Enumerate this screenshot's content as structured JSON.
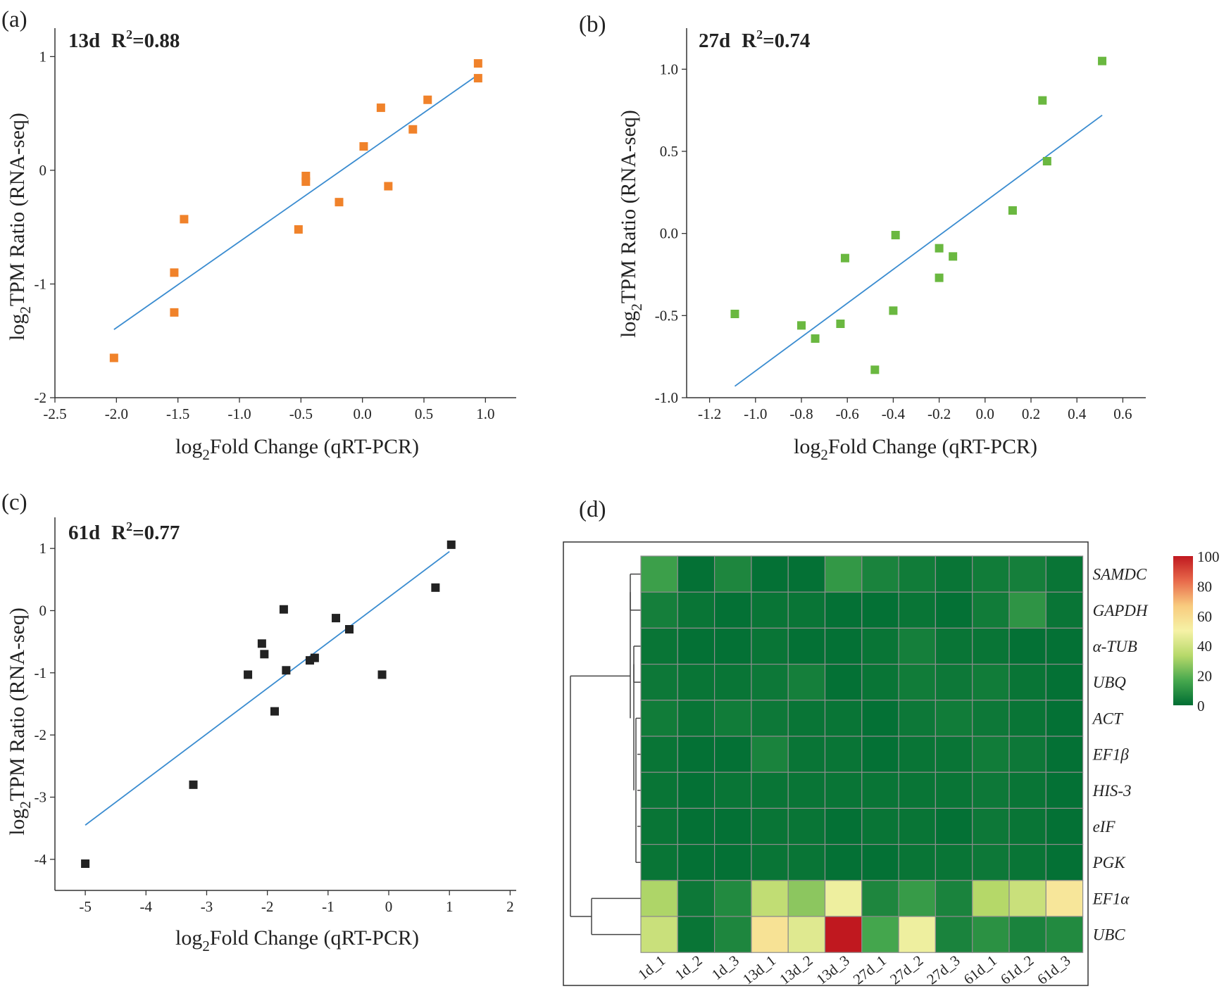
{
  "chart_data": [
    {
      "panel": "(a)",
      "type": "scatter",
      "title": "13d",
      "r2_label": "R",
      "r2_sup": "2",
      "r2_value": "=0.88",
      "xlabel_pre": "log",
      "xlabel_sub": "2",
      "xlabel_post": "Fold Change (qRT-PCR)",
      "ylabel_pre": "log",
      "ylabel_sub": "2",
      "ylabel_post": "TPM Ratio (RNA-seq)",
      "xlim": [
        -2.5,
        1.25
      ],
      "ylim": [
        -2,
        1.25
      ],
      "xticks": [
        -2.5,
        -2.0,
        -1.5,
        -1.0,
        -0.5,
        0.0,
        0.5,
        1.0
      ],
      "xtick_labels": [
        "-2.5",
        "-2.0",
        "-1.5",
        "-1.0",
        "-0.5",
        "0.0",
        "0.5",
        "1.0"
      ],
      "yticks": [
        -2,
        -1,
        0,
        1
      ],
      "ytick_labels": [
        "-2",
        "-1",
        "0",
        "1"
      ],
      "marker_color": "#f0822a",
      "line_color": "#3a8cd0",
      "points": [
        {
          "x": -2.02,
          "y": -1.65
        },
        {
          "x": -1.53,
          "y": -1.25
        },
        {
          "x": -1.53,
          "y": -0.9
        },
        {
          "x": -1.45,
          "y": -0.43
        },
        {
          "x": -0.52,
          "y": -0.52
        },
        {
          "x": -0.46,
          "y": -0.1
        },
        {
          "x": -0.46,
          "y": -0.05
        },
        {
          "x": -0.19,
          "y": -0.28
        },
        {
          "x": 0.01,
          "y": 0.21
        },
        {
          "x": 0.15,
          "y": 0.55
        },
        {
          "x": 0.21,
          "y": -0.14
        },
        {
          "x": 0.41,
          "y": 0.36
        },
        {
          "x": 0.53,
          "y": 0.62
        },
        {
          "x": 0.94,
          "y": 0.94
        },
        {
          "x": 0.94,
          "y": 0.81
        }
      ],
      "fit": [
        {
          "x": -2.02,
          "y": -1.4
        },
        {
          "x": 0.94,
          "y": 0.84
        }
      ]
    },
    {
      "panel": "(b)",
      "type": "scatter",
      "title": "27d",
      "r2_label": "R",
      "r2_sup": "2",
      "r2_value": "=0.74",
      "xlabel_pre": "log",
      "xlabel_sub": "2",
      "xlabel_post": "Fold Change (qRT-PCR)",
      "ylabel_pre": "log",
      "ylabel_sub": "2",
      "ylabel_post": "TPM Ratio (RNA-seq)",
      "xlim": [
        -1.3,
        0.7
      ],
      "ylim": [
        -1.0,
        1.25
      ],
      "xticks": [
        -1.2,
        -1.0,
        -0.8,
        -0.6,
        -0.4,
        -0.2,
        0.0,
        0.2,
        0.4,
        0.6
      ],
      "xtick_labels": [
        "-1.2",
        "-1.0",
        "-0.8",
        "-0.6",
        "-0.4",
        "-0.2",
        "0.0",
        "0.2",
        "0.4",
        "0.6"
      ],
      "yticks": [
        -1.0,
        -0.5,
        0.0,
        0.5,
        1.0
      ],
      "ytick_labels": [
        "-1.0",
        "-0.5",
        "0.0",
        "0.5",
        "1.0"
      ],
      "marker_color": "#6ab840",
      "line_color": "#3a8cd0",
      "points": [
        {
          "x": -1.09,
          "y": -0.49
        },
        {
          "x": -0.8,
          "y": -0.56
        },
        {
          "x": -0.74,
          "y": -0.64
        },
        {
          "x": -0.63,
          "y": -0.55
        },
        {
          "x": -0.61,
          "y": -0.15
        },
        {
          "x": -0.48,
          "y": -0.83
        },
        {
          "x": -0.4,
          "y": -0.47
        },
        {
          "x": -0.39,
          "y": -0.01
        },
        {
          "x": -0.2,
          "y": -0.09
        },
        {
          "x": -0.2,
          "y": -0.27
        },
        {
          "x": -0.14,
          "y": -0.14
        },
        {
          "x": 0.12,
          "y": 0.14
        },
        {
          "x": 0.25,
          "y": 0.81
        },
        {
          "x": 0.27,
          "y": 0.44
        },
        {
          "x": 0.51,
          "y": 1.05
        }
      ],
      "fit": [
        {
          "x": -1.09,
          "y": -0.93
        },
        {
          "x": 0.51,
          "y": 0.72
        }
      ]
    },
    {
      "panel": "(c)",
      "type": "scatter",
      "title": "61d",
      "r2_label": "R",
      "r2_sup": "2",
      "r2_value": "=0.77",
      "xlabel_pre": "log",
      "xlabel_sub": "2",
      "xlabel_post": "Fold Change (qRT-PCR)",
      "ylabel_pre": "log",
      "ylabel_sub": "2",
      "ylabel_post": "TPM Ratio (RNA-seq)",
      "xlim": [
        -5.5,
        2.1
      ],
      "ylim": [
        -4.5,
        1.5
      ],
      "xticks": [
        -5,
        -4,
        -3,
        -2,
        -1,
        0,
        1,
        2
      ],
      "xtick_labels": [
        "-5",
        "-4",
        "-3",
        "-2",
        "-1",
        "0",
        "1",
        "2"
      ],
      "yticks": [
        -4,
        -3,
        -2,
        -1,
        0,
        1
      ],
      "ytick_labels": [
        "-4",
        "-3",
        "-2",
        "-1",
        "0",
        "1"
      ],
      "marker_color": "#222222",
      "line_color": "#3a8cd0",
      "points": [
        {
          "x": -5.0,
          "y": -4.07
        },
        {
          "x": -3.22,
          "y": -2.8
        },
        {
          "x": -2.32,
          "y": -1.03
        },
        {
          "x": -2.09,
          "y": -0.53
        },
        {
          "x": -2.05,
          "y": -0.7
        },
        {
          "x": -1.73,
          "y": 0.02
        },
        {
          "x": -1.69,
          "y": -0.96
        },
        {
          "x": -1.88,
          "y": -1.62
        },
        {
          "x": -1.3,
          "y": -0.8
        },
        {
          "x": -1.22,
          "y": -0.76
        },
        {
          "x": -0.87,
          "y": -0.12
        },
        {
          "x": -0.65,
          "y": -0.3
        },
        {
          "x": -0.11,
          "y": -1.03
        },
        {
          "x": 0.77,
          "y": 0.37
        },
        {
          "x": 1.03,
          "y": 1.06
        }
      ],
      "fit": [
        {
          "x": -5.0,
          "y": -3.45
        },
        {
          "x": 1.0,
          "y": 0.95
        }
      ]
    },
    {
      "panel": "(d)",
      "type": "heatmap",
      "columns": [
        "1d_1",
        "1d_2",
        "1d_3",
        "13d_1",
        "13d_2",
        "13d_3",
        "27d_1",
        "27d_2",
        "27d_3",
        "61d_1",
        "61d_2",
        "61d_3"
      ],
      "rows": [
        "SAMDC",
        "GAPDH",
        "α-TUB",
        "UBQ",
        "ACT",
        "EF1β",
        "HIS-3",
        "eIF",
        "PGK",
        "EF1α",
        "UBC"
      ],
      "values": [
        [
          14,
          1,
          7,
          1,
          1,
          12,
          6,
          4,
          2,
          4,
          5,
          2
        ],
        [
          5,
          2,
          1,
          2,
          2,
          1,
          1,
          2,
          1,
          4,
          11,
          2
        ],
        [
          2,
          1,
          1,
          2,
          1,
          1,
          2,
          5,
          2,
          2,
          1,
          1
        ],
        [
          3,
          2,
          2,
          3,
          5,
          1,
          2,
          4,
          3,
          4,
          2,
          1
        ],
        [
          4,
          2,
          4,
          3,
          2,
          2,
          1,
          3,
          4,
          3,
          2,
          1
        ],
        [
          2,
          1,
          1,
          6,
          2,
          2,
          1,
          2,
          2,
          4,
          3,
          1
        ],
        [
          2,
          1,
          2,
          2,
          2,
          2,
          2,
          2,
          2,
          3,
          2,
          1
        ],
        [
          2,
          1,
          1,
          2,
          2,
          1,
          2,
          2,
          1,
          3,
          2,
          1
        ],
        [
          2,
          1,
          1,
          2,
          2,
          1,
          1,
          2,
          2,
          3,
          2,
          1
        ],
        [
          32,
          3,
          8,
          36,
          27,
          48,
          7,
          13,
          6,
          33,
          38,
          55
        ],
        [
          38,
          2,
          7,
          57,
          44,
          100,
          16,
          48,
          6,
          10,
          6,
          8
        ]
      ],
      "legend": {
        "min": 0,
        "max": 100,
        "ticks": [
          0,
          20,
          40,
          60,
          80,
          100
        ],
        "tick_labels": [
          "0",
          "20",
          "40",
          "60",
          "80",
          "100"
        ],
        "colors": [
          "#006e33",
          "#47a84e",
          "#b7d96a",
          "#f6f2a6",
          "#f8cb7e",
          "#e86a4b",
          "#c0181f"
        ]
      }
    }
  ]
}
